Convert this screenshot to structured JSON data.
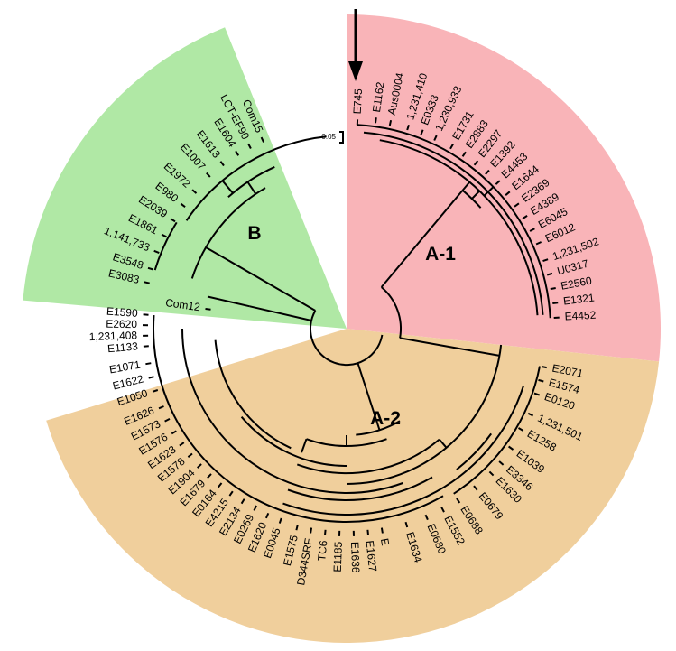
{
  "colors": {
    "clade_a1": "#f9b4b8",
    "clade_a2": "#f0cf9c",
    "clade_b": "#b0e8a5",
    "line": "#000000"
  },
  "scale_label": "0.05",
  "clades": {
    "b": "B",
    "a1": "A-1",
    "a2": "A-2"
  },
  "arrow_marker": "E745",
  "leaves": [
    "E745",
    "E1162",
    "Aus0004",
    "1,231,410",
    "E0333",
    "1,230,933",
    "E1731",
    "E2883",
    "E2297",
    "E1392",
    "E4453",
    "E1644",
    "E2369",
    "E4389",
    "E6045",
    "E6012",
    "1,231,502",
    "U0317",
    "E2560",
    "E1321",
    "E4452",
    "E2071",
    "E1574",
    "E0120",
    "1,231,501",
    "E1258",
    "E1039",
    "E3346",
    "E1630",
    "E0679",
    "E0688",
    "E1552",
    "E0680",
    "E1634",
    "E",
    "E1627",
    "E1636",
    "E1185",
    "TC6",
    "D344SRF",
    "E1575",
    "E0045",
    "E1620",
    "E0269",
    "E2134",
    "E4215",
    "E0164",
    "E1679",
    "E1904",
    "E1578",
    "E1623",
    "E1576",
    "E1573",
    "E1626",
    "E1050",
    "E1622",
    "E1071",
    "E1133",
    "1,231,408",
    "E2620",
    "E1590",
    "Com12",
    "E3083",
    "E3548",
    "1,141,733",
    "E1861",
    "E2039",
    "E980",
    "E1972",
    "E1007",
    "E1613",
    "E1604",
    "LCT-EF90",
    "Com15"
  ]
}
